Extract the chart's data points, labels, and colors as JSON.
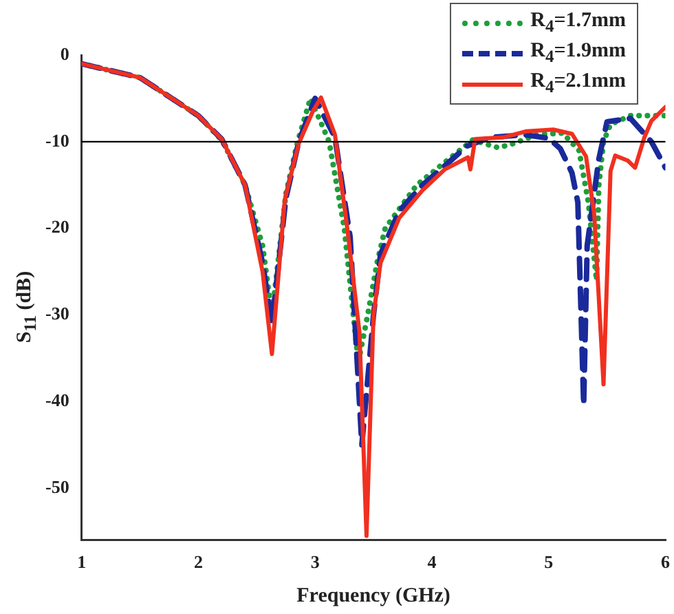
{
  "chart_data": {
    "type": "line",
    "xlabel": "Frequency (GHz)",
    "ylabel": "S$_{11}$ (dB)",
    "xlim": [
      1,
      6
    ],
    "ylim": [
      -56,
      0
    ],
    "xticks": [
      1,
      2,
      3,
      4,
      5,
      6
    ],
    "yticks": [
      0,
      -10,
      -20,
      -30,
      -40,
      -50
    ],
    "grid": false,
    "legend": "top right",
    "marker": "none",
    "ref_lines": [
      {
        "axis": "y",
        "value": -10,
        "color": "#000000"
      }
    ],
    "series": [
      {
        "name": "R$_{4}$=1.7mm",
        "color": "#1f9e3a",
        "line_style": "dotted",
        "x": [
          1,
          1.5,
          2,
          2.2,
          2.4,
          2.55,
          2.63,
          2.75,
          2.85,
          2.96,
          3.12,
          3.25,
          3.37,
          3.45,
          3.53,
          3.6,
          3.87,
          4.1,
          4.35,
          4.57,
          4.7,
          4.9,
          5.12,
          5.26,
          5.34,
          5.41,
          5.43,
          5.47,
          5.53,
          5.7,
          6
        ],
        "values": [
          -1,
          -2.6,
          -7,
          -9.8,
          -15,
          -22,
          -30,
          -16,
          -10,
          -5,
          -10,
          -20,
          -35.5,
          -30,
          -24,
          -20,
          -15,
          -12.5,
          -9.8,
          -10.7,
          -10.2,
          -9.2,
          -9,
          -11,
          -17,
          -26,
          -15,
          -10,
          -8,
          -7,
          -7
        ]
      },
      {
        "name": "R$_{4}$=1.9mm",
        "color": "#1a2a9a",
        "line_style": "dashed",
        "x": [
          1,
          1.5,
          2,
          2.2,
          2.4,
          2.55,
          2.63,
          2.75,
          2.86,
          3.0,
          3.17,
          3.3,
          3.4,
          3.5,
          3.56,
          3.72,
          3.92,
          4.11,
          4.3,
          4.5,
          4.8,
          5.0,
          5.1,
          5.2,
          5.25,
          5.3,
          5.33,
          5.43,
          5.5,
          5.7,
          5.88,
          6
        ],
        "values": [
          -1,
          -2.6,
          -7,
          -9.7,
          -15,
          -24,
          -31,
          -16.5,
          -10,
          -5,
          -9.5,
          -21,
          -45,
          -30,
          -23,
          -18,
          -15,
          -12.8,
          -10.5,
          -9.5,
          -9.2,
          -9.6,
          -10.8,
          -13.6,
          -17,
          -40.4,
          -22,
          -12,
          -7.7,
          -7.3,
          -10,
          -13
        ]
      },
      {
        "name": "R$_{4}$=2.1mm",
        "color": "#f03020",
        "line_style": "solid",
        "x": [
          1,
          1.5,
          2,
          2.2,
          2.4,
          2.55,
          2.63,
          2.74,
          2.86,
          2.98,
          3.05,
          3.17,
          3.28,
          3.38,
          3.44,
          3.5,
          3.56,
          3.72,
          3.92,
          4.11,
          4.31,
          4.33,
          4.37,
          4.61,
          4.81,
          5.04,
          5.2,
          5.32,
          5.39,
          5.47,
          5.53,
          5.57,
          5.68,
          5.74,
          5.82,
          5.88,
          6
        ],
        "values": [
          -1,
          -2.6,
          -7,
          -9.7,
          -15,
          -25,
          -34.5,
          -16.7,
          -10.2,
          -6.5,
          -4.9,
          -9.2,
          -20.5,
          -32,
          -55.5,
          -30,
          -24,
          -18.8,
          -15.6,
          -13.2,
          -11.8,
          -13.2,
          -9.7,
          -9.5,
          -8.8,
          -8.6,
          -9.1,
          -11.7,
          -18.3,
          -38,
          -13.4,
          -11.6,
          -12.2,
          -13,
          -9.5,
          -7.6,
          -6
        ]
      }
    ]
  }
}
